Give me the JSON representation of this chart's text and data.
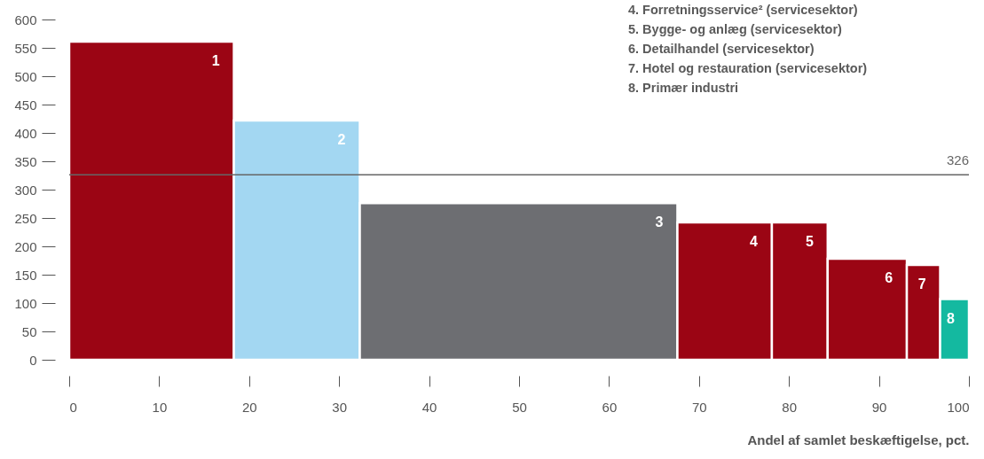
{
  "chart_data": {
    "type": "histogram",
    "bins": [
      0,
      18.3,
      32.3,
      67.6,
      78.1,
      84.3,
      93.1,
      96.8,
      100
    ],
    "values": [
      561,
      422,
      276,
      242,
      242,
      178,
      167,
      107
    ],
    "colors": [
      "#9b0514",
      "#a3d7f2",
      "#6d6e72",
      "#9b0514",
      "#9b0514",
      "#9b0514",
      "#9b0514",
      "#14b9a0"
    ],
    "xlim": [
      0,
      100
    ],
    "xticks": [
      0,
      10,
      20,
      30,
      40,
      50,
      60,
      70,
      80,
      90,
      100
    ],
    "ylim": [
      0,
      600
    ],
    "yticks": [
      0,
      50,
      100,
      150,
      200,
      250,
      300,
      350,
      400,
      450,
      500,
      550,
      600
    ],
    "xlabel": "Andel af samlet beskæftigelse, pct.",
    "ref_lines": [
      {
        "axis": "y",
        "value": 326,
        "label": "326",
        "color": "#666666"
      }
    ],
    "annotations": [
      "4. Forretningsservice² (servicesektor)",
      "5. Bygge- og anlæg (servicesektor)",
      "6. Detailhandel (servicesektor)",
      "7. Hotel og restauration (servicesektor)",
      "8. Primær industri",
      {
        "text": "1",
        "x": 18.3,
        "y": 561
      },
      {
        "text": "2",
        "x": 32.3,
        "y": 422
      },
      {
        "text": "3",
        "x": 67.6,
        "y": 276
      },
      {
        "text": "4",
        "x": 78.1,
        "y": 242
      },
      {
        "text": "5",
        "x": 84.3,
        "y": 242
      },
      {
        "text": "6",
        "x": 93.1,
        "y": 178
      },
      {
        "text": "7",
        "x": 96.8,
        "y": 167
      },
      {
        "text": "8",
        "x": 100,
        "y": 107
      }
    ]
  }
}
